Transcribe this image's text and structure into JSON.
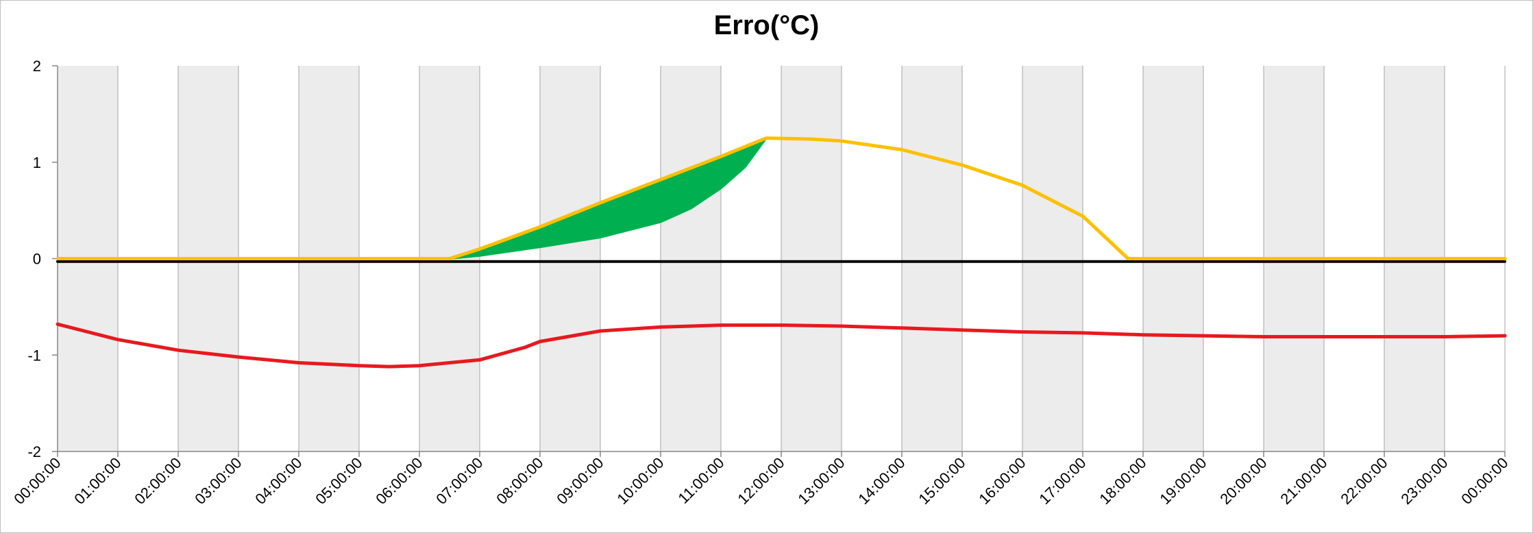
{
  "chart_data": {
    "type": "line",
    "title": "Erro(°C)",
    "xlabel": "",
    "ylabel": "",
    "ylim": [
      -2,
      2
    ],
    "yticks": [
      "2",
      "1",
      "0",
      "-1",
      "-2"
    ],
    "xticks": [
      "00:00:00",
      "01:00:00",
      "02:00:00",
      "03:00:00",
      "04:00:00",
      "05:00:00",
      "06:00:00",
      "07:00:00",
      "08:00:00",
      "09:00:00",
      "10:00:00",
      "11:00:00",
      "12:00:00",
      "13:00:00",
      "14:00:00",
      "15:00:00",
      "16:00:00",
      "17:00:00",
      "18:00:00",
      "19:00:00",
      "20:00:00",
      "21:00:00",
      "22:00:00",
      "23:00:00",
      "00:00:00"
    ],
    "background": "alternating grey/white hourly bands",
    "x_unit": "hours",
    "series": [
      {
        "color": "#ffc000",
        "x": [
          0,
          6.5,
          7,
          8,
          9,
          10,
          11,
          11.75,
          12.5,
          13,
          14,
          15,
          16,
          17,
          17.75,
          24
        ],
        "y": [
          0,
          0,
          0.1,
          0.33,
          0.58,
          0.82,
          1.06,
          1.25,
          1.24,
          1.22,
          1.13,
          0.97,
          0.76,
          0.44,
          0,
          0
        ]
      },
      {
        "color": "#00b050",
        "x": [
          6.5,
          7,
          8,
          9,
          10,
          10.5,
          11,
          11.4,
          11.75
        ],
        "y": [
          0,
          0.03,
          0.12,
          0.22,
          0.38,
          0.52,
          0.73,
          0.95,
          1.25
        ]
      },
      {
        "color": "#e8191f",
        "x": [
          0,
          1,
          2,
          3,
          4,
          5,
          5.5,
          6,
          7,
          7.75,
          8,
          9,
          10,
          11,
          12,
          13,
          14,
          15,
          16,
          17,
          18,
          19,
          20,
          21,
          22,
          23,
          24
        ],
        "y": [
          -0.68,
          -0.84,
          -0.95,
          -1.02,
          -1.08,
          -1.11,
          -1.12,
          -1.11,
          -1.05,
          -0.92,
          -0.86,
          -0.75,
          -0.71,
          -0.69,
          -0.69,
          -0.7,
          -0.72,
          -0.74,
          -0.76,
          -0.77,
          -0.79,
          -0.8,
          -0.81,
          -0.81,
          -0.81,
          -0.81,
          -0.8
        ]
      },
      {
        "color": "#000000",
        "x": [
          0,
          24
        ],
        "y": [
          -0.03,
          -0.03
        ]
      }
    ]
  }
}
